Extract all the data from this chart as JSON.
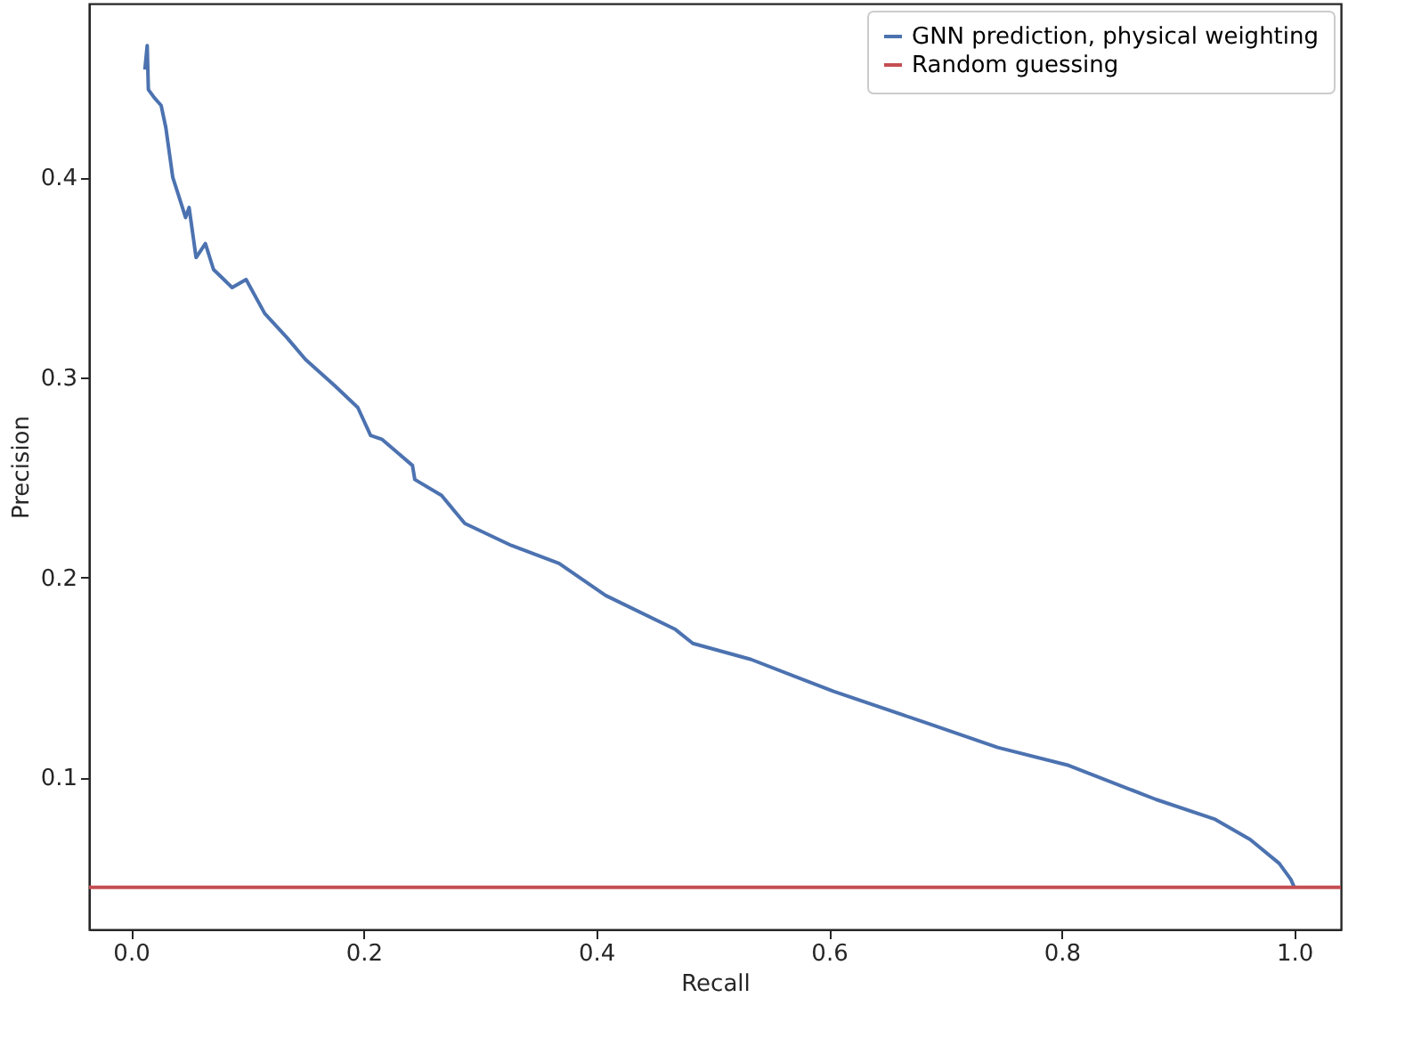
{
  "chart_data": {
    "type": "line",
    "xlabel": "Recall",
    "ylabel": "Precision",
    "xlim": [
      -0.036,
      1.04
    ],
    "ylim": [
      0.024,
      0.487
    ],
    "xticks": [
      {
        "value": 0,
        "label": "0.0"
      },
      0.2,
      0.4,
      0.6,
      0.8,
      {
        "value": 1,
        "label": "1.0"
      }
    ],
    "yticks": [
      0.1,
      0.2,
      0.3,
      0.4
    ],
    "grid": false,
    "legend": "top right",
    "marker": "none",
    "line_style": "solid",
    "series": [
      {
        "name": "GNN prediction, physical weighting",
        "color": "#4c72b0",
        "x": [
          0.012,
          0.014,
          0.015,
          0.02,
          0.026,
          0.03,
          0.036,
          0.041,
          0.047,
          0.05,
          0.056,
          0.064,
          0.071,
          0.087,
          0.099,
          0.115,
          0.134,
          0.15,
          0.175,
          0.195,
          0.206,
          0.216,
          0.242,
          0.244,
          0.267,
          0.287,
          0.327,
          0.368,
          0.408,
          0.468,
          0.483,
          0.533,
          0.604,
          0.68,
          0.745,
          0.806,
          0.881,
          0.932,
          0.962,
          0.987,
          0.997,
          1.0
        ],
        "values": [
          0.454,
          0.466,
          0.444,
          0.44,
          0.436,
          0.425,
          0.4,
          0.391,
          0.38,
          0.385,
          0.36,
          0.367,
          0.354,
          0.345,
          0.349,
          0.332,
          0.32,
          0.309,
          0.296,
          0.285,
          0.271,
          0.269,
          0.256,
          0.249,
          0.241,
          0.227,
          0.216,
          0.207,
          0.191,
          0.174,
          0.167,
          0.159,
          0.143,
          0.128,
          0.115,
          0.106,
          0.089,
          0.079,
          0.069,
          0.057,
          0.049,
          0.045
        ]
      },
      {
        "name": "Random guessing",
        "color": "#c44e52",
        "x": [
          -0.036,
          1.04
        ],
        "values": [
          0.045,
          0.045
        ]
      }
    ]
  }
}
